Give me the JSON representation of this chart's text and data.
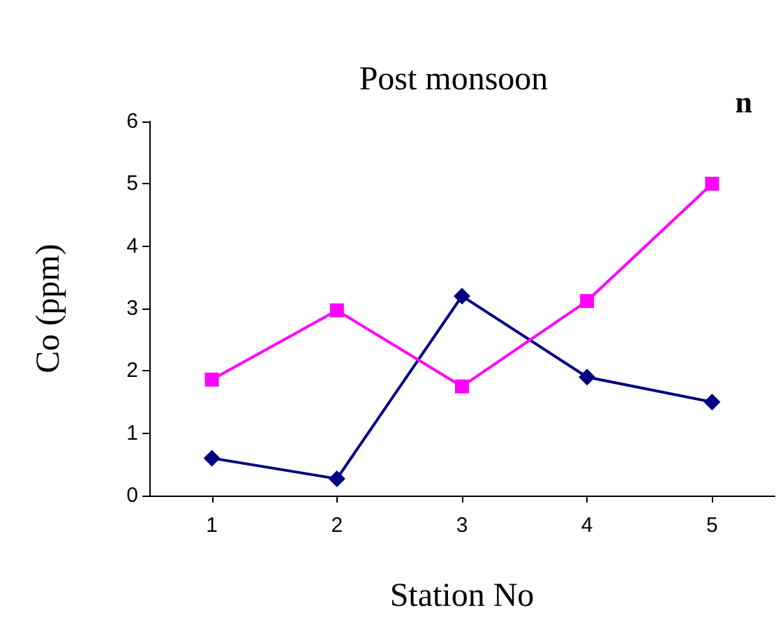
{
  "chart_data": {
    "type": "line",
    "title": "Post monsoon",
    "xlabel": "Station No",
    "ylabel": "Co (ppm)",
    "categories": [
      "1",
      "2",
      "3",
      "4",
      "5"
    ],
    "series": [
      {
        "color": "#000080",
        "marker": "diamond",
        "values": [
          0.6,
          0.27,
          3.2,
          1.9,
          1.5
        ]
      },
      {
        "color": "#ff00ff",
        "marker": "square",
        "values": [
          1.86,
          2.97,
          1.75,
          3.12,
          5.0
        ]
      }
    ],
    "ylim": [
      0,
      6
    ],
    "yticks": [
      0,
      1,
      2,
      3,
      4,
      5,
      6
    ],
    "grid": false,
    "annotations": [
      "n"
    ]
  }
}
